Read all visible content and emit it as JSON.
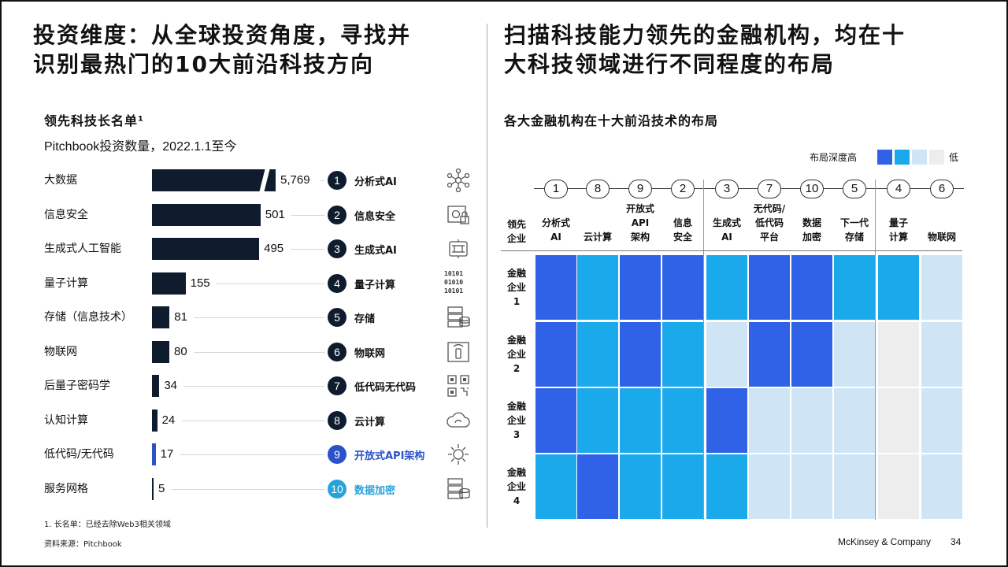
{
  "left": {
    "title_line1": "投资维度：从全球投资角度，寻找并",
    "title_line2": "识别最热门的10大前沿科技方向",
    "chart_title": "领先科技长名单¹",
    "chart_subtitle": "Pitchbook投资数量，2022.1.1至今"
  },
  "right": {
    "title_line1": "扫描科技能力领先的金融机构，均在十",
    "title_line2": "大科技领域进行不同程度的布局",
    "chart_title": "各大金融机构在十大前沿技术的布局",
    "legend_high": "布局深度高",
    "legend_low": "低"
  },
  "footnote": "1.   长名单：已经去除Web3相关领域",
  "source": "资料来源：Pitchbook",
  "brand": "McKinsey & Company",
  "page_number": "34",
  "colors": {
    "bar": "#0f1c2e",
    "level_high": "#2f62e6",
    "level_mid": "#1aa9ea",
    "level_light": "#cfe5f5",
    "level_lowest": "#ededed",
    "num9": "#2a52c9",
    "num10": "#27a3dc"
  },
  "techs": [
    {
      "num": "1",
      "label": "分析式AI",
      "icon": "network-icon"
    },
    {
      "num": "2",
      "label": "信息安全",
      "icon": "safe-lock-icon"
    },
    {
      "num": "3",
      "label": "生成式AI",
      "icon": "circuit-icon"
    },
    {
      "num": "4",
      "label": "量子计算",
      "icon": "binary-icon",
      "icon_text": [
        "10101",
        "01010",
        "10101"
      ]
    },
    {
      "num": "5",
      "label": "存储",
      "icon": "storage-icon"
    },
    {
      "num": "6",
      "label": "物联网",
      "icon": "iot-device-icon"
    },
    {
      "num": "7",
      "label": "低代码无代码",
      "icon": "qr-code-icon"
    },
    {
      "num": "8",
      "label": "云计算",
      "icon": "cloud-sync-icon"
    },
    {
      "num": "9",
      "label": "开放式API架构",
      "icon": "api-gear-icon"
    },
    {
      "num": "10",
      "label": "数据加密",
      "icon": "data-encrypt-icon"
    }
  ],
  "chart_data": [
    {
      "type": "bar",
      "orientation": "horizontal",
      "title": "领先科技长名单¹",
      "subtitle": "Pitchbook投资数量，2022.1.1至今",
      "categories": [
        "大数据",
        "信息安全",
        "生成式人工智能",
        "量子计算",
        "存储（信息技术）",
        "物联网",
        "后量子密码学",
        "认知计算",
        "低代码/无代码",
        "服务网格"
      ],
      "values": [
        5769,
        501,
        495,
        155,
        81,
        80,
        34,
        24,
        17,
        5
      ],
      "value_labels": [
        "5,769",
        "501",
        "495",
        "155",
        "81",
        "80",
        "34",
        "24",
        "17",
        "5"
      ],
      "axis_break": true
    },
    {
      "type": "heatmap",
      "title": "各大金融机构在十大前沿技术的布局",
      "corner_label": [
        "领先",
        "企业"
      ],
      "column_numbers": [
        "1",
        "8",
        "9",
        "2",
        "3",
        "7",
        "10",
        "5",
        "4",
        "6"
      ],
      "columns": [
        [
          "分析式",
          "AI"
        ],
        [
          "云计算"
        ],
        [
          "开放式",
          "API",
          "架构"
        ],
        [
          "信息",
          "安全"
        ],
        [
          "生成式",
          "AI"
        ],
        [
          "无代码/",
          "低代码",
          "平台"
        ],
        [
          "数据",
          "加密"
        ],
        [
          "下一代",
          "存储"
        ],
        [
          "量子",
          "计算"
        ],
        [
          "物联网"
        ]
      ],
      "column_groups": [
        4,
        4,
        2
      ],
      "rows": [
        [
          "金融",
          "企业",
          "1"
        ],
        [
          "金融",
          "企业",
          "2"
        ],
        [
          "金融",
          "企业",
          "3"
        ],
        [
          "金融",
          "企业",
          "4"
        ]
      ],
      "levels": [
        [
          3,
          2,
          3,
          3,
          2,
          3,
          3,
          2,
          2,
          1
        ],
        [
          3,
          2,
          3,
          2,
          1,
          3,
          3,
          1,
          0,
          1
        ],
        [
          3,
          2,
          2,
          2,
          3,
          1,
          1,
          1,
          0,
          1
        ],
        [
          2,
          3,
          2,
          2,
          2,
          1,
          1,
          1,
          0,
          1
        ]
      ],
      "legend": {
        "high": "布局深度高",
        "low": "低",
        "levels": [
          3,
          2,
          1,
          0
        ]
      }
    }
  ]
}
